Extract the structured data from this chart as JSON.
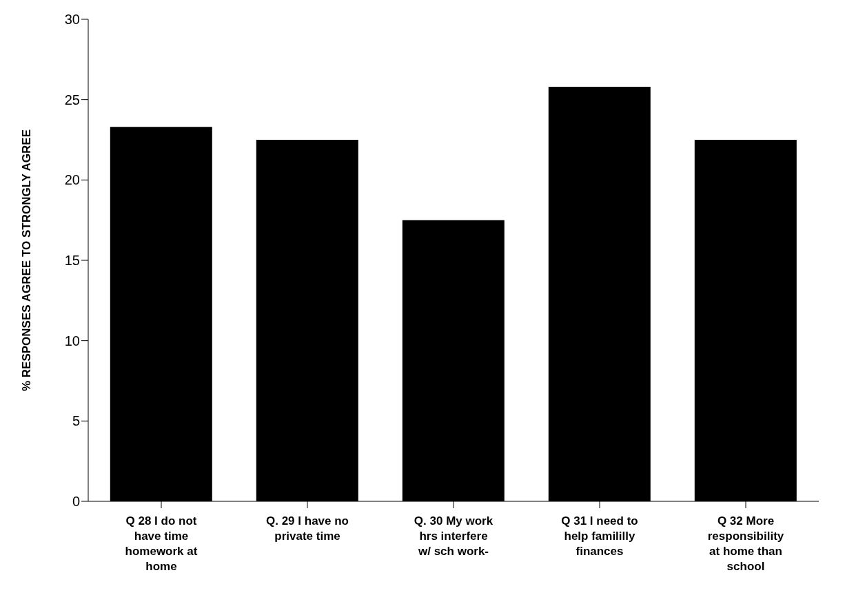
{
  "chart_data": {
    "type": "bar",
    "ylabel": "% RESPONSES AGREE TO STRONGLY AGREE",
    "categories": [
      "Q 28 I do not have time homework at home",
      "Q. 29 I have no private time",
      "Q. 30 My work hrs interfere w/ sch work-",
      "Q 31 I need to help famililly finances",
      "Q 32 More responsibility at home than school"
    ],
    "values": [
      23.3,
      22.5,
      17.5,
      25.8,
      22.5
    ],
    "color": "#000000",
    "ylim": [
      0,
      30
    ],
    "yticks": [
      0,
      5,
      10,
      15,
      20,
      25,
      30
    ],
    "grid": false,
    "legend": false
  }
}
